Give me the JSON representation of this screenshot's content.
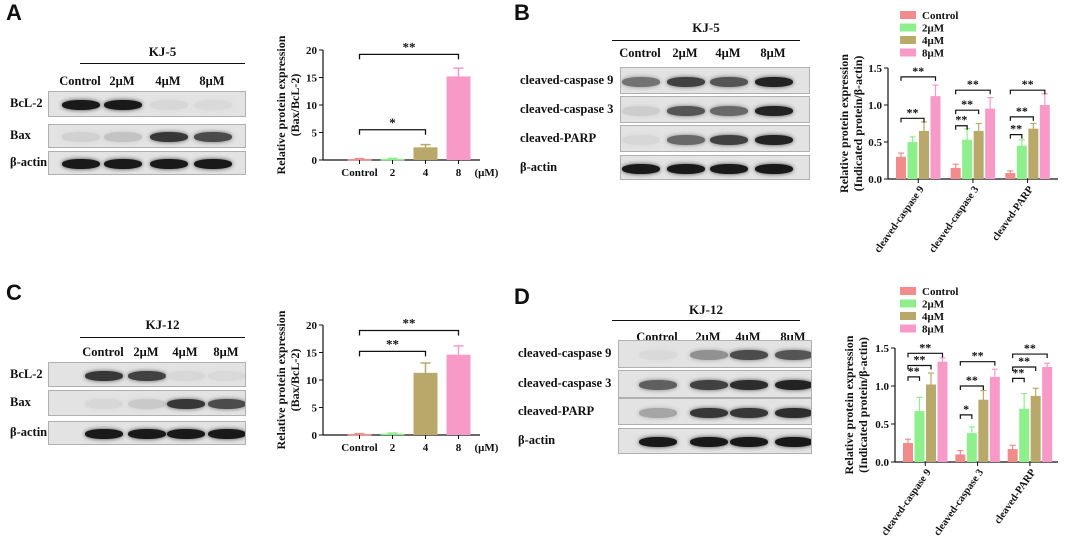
{
  "panels": [
    {
      "letter": "A",
      "blot": {
        "title": "KJ-5",
        "lanes": [
          "Control",
          "2μM",
          "4μM",
          "8μM"
        ],
        "rows": [
          "BcL-2",
          "Bax",
          "β-actin"
        ]
      }
    },
    {
      "letter": "B",
      "blot": {
        "title": "KJ-5",
        "lanes": [
          "Control",
          "2μM",
          "4μM",
          "8μM"
        ],
        "rows": [
          "cleaved-caspase 9",
          "cleaved-caspase 3",
          "cleaved-PARP",
          "β-actin"
        ]
      }
    },
    {
      "letter": "C",
      "blot": {
        "title": "KJ-12",
        "lanes": [
          "Control",
          "2μM",
          "4μM",
          "8μM"
        ],
        "rows": [
          "BcL-2",
          "Bax",
          "β-actin"
        ]
      }
    },
    {
      "letter": "D",
      "blot": {
        "title": "KJ-12",
        "lanes": [
          "Control",
          "2μM",
          "4μM",
          "8μM"
        ],
        "rows": [
          "cleaved-caspase 9",
          "cleaved-caspase 3",
          "cleaved-PARP",
          "β-actin"
        ]
      }
    }
  ],
  "colors": {
    "control": "#f28b8b",
    "c2": "#8df08d",
    "c4": "#b8a86a",
    "c8": "#f79ac8"
  },
  "chart_data": [
    {
      "type": "bar",
      "panel": "A",
      "categories": [
        "Control",
        "2",
        "4",
        "8"
      ],
      "unit_label": "(μM)",
      "values": [
        0.15,
        0.2,
        2.3,
        15.2
      ],
      "errors": [
        0.1,
        0.1,
        0.5,
        1.5
      ],
      "ylabel": [
        "Relative protein expression",
        "(Bax/BcL-2)"
      ],
      "ylim": [
        0,
        20
      ],
      "yticks": [
        "0",
        "5",
        "10",
        "15",
        "20"
      ],
      "significance": [
        {
          "from": 0,
          "to": 2,
          "label": "*",
          "level": 5.5
        },
        {
          "from": 0,
          "to": 3,
          "label": "**",
          "level": 19.2
        }
      ]
    },
    {
      "type": "bar",
      "panel": "B",
      "categories": [
        "cleaved-caspase 9",
        "cleaved-caspase 3",
        "cleaved-PARP"
      ],
      "series": [
        {
          "name": "Control",
          "values": [
            0.3,
            0.15,
            0.08
          ],
          "errors": [
            0.05,
            0.05,
            0.03
          ]
        },
        {
          "name": "2μM",
          "values": [
            0.5,
            0.53,
            0.45
          ],
          "errors": [
            0.07,
            0.15,
            0.08
          ]
        },
        {
          "name": "4μM",
          "values": [
            0.65,
            0.65,
            0.68
          ],
          "errors": [
            0.12,
            0.1,
            0.07
          ]
        },
        {
          "name": "8μM",
          "values": [
            1.12,
            0.95,
            1.0
          ],
          "errors": [
            0.15,
            0.15,
            0.15
          ]
        }
      ],
      "ylabel": [
        "Relative protein expression",
        "(Indicated protein/β-actin)"
      ],
      "ylim": [
        0,
        1.5
      ],
      "yticks": [
        "0.0",
        "0.5",
        "1.0",
        "1.5"
      ],
      "significance": [
        {
          "group": 0,
          "from": 0,
          "to": 2,
          "label": "**",
          "level": 0.82
        },
        {
          "group": 0,
          "from": 0,
          "to": 3,
          "label": "**",
          "level": 1.38
        },
        {
          "group": 1,
          "from": 0,
          "to": 1,
          "label": "**",
          "level": 0.72
        },
        {
          "group": 1,
          "from": 0,
          "to": 2,
          "label": "**",
          "level": 0.93
        },
        {
          "group": 1,
          "from": 0,
          "to": 3,
          "label": "**",
          "level": 1.2
        },
        {
          "group": 2,
          "from": 0,
          "to": 1,
          "label": "**",
          "level": 0.6
        },
        {
          "group": 2,
          "from": 0,
          "to": 2,
          "label": "**",
          "level": 0.84
        },
        {
          "group": 2,
          "from": 0,
          "to": 3,
          "label": "**",
          "level": 1.2
        }
      ]
    },
    {
      "type": "bar",
      "panel": "C",
      "categories": [
        "Control",
        "2",
        "4",
        "8"
      ],
      "unit_label": "(μM)",
      "values": [
        0.15,
        0.25,
        11.3,
        14.6
      ],
      "errors": [
        0.1,
        0.1,
        1.8,
        1.6
      ],
      "ylabel": [
        "Relative protein expression",
        "(Bax/BcL-2)"
      ],
      "ylim": [
        0,
        20
      ],
      "yticks": [
        "0",
        "5",
        "10",
        "15",
        "20"
      ],
      "significance": [
        {
          "from": 0,
          "to": 2,
          "label": "**",
          "level": 15.2
        },
        {
          "from": 0,
          "to": 3,
          "label": "**",
          "level": 19.0
        }
      ]
    },
    {
      "type": "bar",
      "panel": "D",
      "categories": [
        "cleaved-caspase 9",
        "cleaved-caspase 3",
        "cleaved-PARP"
      ],
      "series": [
        {
          "name": "Control",
          "values": [
            0.25,
            0.1,
            0.17
          ],
          "errors": [
            0.05,
            0.05,
            0.05
          ]
        },
        {
          "name": "2μM",
          "values": [
            0.67,
            0.38,
            0.7
          ],
          "errors": [
            0.18,
            0.08,
            0.2
          ]
        },
        {
          "name": "4μM",
          "values": [
            1.02,
            0.82,
            0.87
          ],
          "errors": [
            0.15,
            0.12,
            0.1
          ]
        },
        {
          "name": "8μM",
          "values": [
            1.32,
            1.12,
            1.25
          ],
          "errors": [
            0.05,
            0.1,
            0.05
          ]
        }
      ],
      "ylabel": [
        "Relative protein expression",
        "(Indicated protein/β-actin)"
      ],
      "ylim": [
        0,
        1.5
      ],
      "yticks": [
        "0.0",
        "0.5",
        "1.0",
        "1.5"
      ],
      "significance": [
        {
          "group": 0,
          "from": 0,
          "to": 1,
          "label": "**",
          "level": 1.12
        },
        {
          "group": 0,
          "from": 0,
          "to": 2,
          "label": "**",
          "level": 1.27
        },
        {
          "group": 0,
          "from": 0,
          "to": 3,
          "label": "**",
          "level": 1.43
        },
        {
          "group": 1,
          "from": 0,
          "to": 1,
          "label": "*",
          "level": 0.62
        },
        {
          "group": 1,
          "from": 0,
          "to": 2,
          "label": "**",
          "level": 1.0
        },
        {
          "group": 1,
          "from": 0,
          "to": 3,
          "label": "**",
          "level": 1.32
        },
        {
          "group": 2,
          "from": 0,
          "to": 1,
          "label": "**",
          "level": 1.1
        },
        {
          "group": 2,
          "from": 0,
          "to": 2,
          "label": "**",
          "level": 1.25
        },
        {
          "group": 2,
          "from": 0,
          "to": 3,
          "label": "**",
          "level": 1.42
        }
      ]
    }
  ]
}
